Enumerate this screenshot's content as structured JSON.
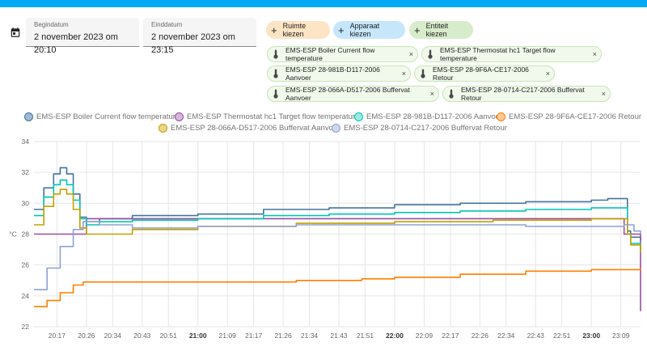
{
  "header": {
    "accent_color": "#03a9f4"
  },
  "date_range": {
    "start_label": "Begindatum",
    "start_value": "2 november 2023 om 20:10",
    "end_label": "Einddatum",
    "end_value": "2 november 2023 om 23:15"
  },
  "target_buttons": [
    {
      "label": "Ruimte kiezen",
      "color": "#fce4c4"
    },
    {
      "label": "Apparaat kiezen",
      "color": "#c6e7fb"
    },
    {
      "label": "Entiteit kiezen",
      "color": "#d7eccb"
    }
  ],
  "chips": [
    "EMS-ESP Boiler Current flow temperature",
    "EMS-ESP Thermostat hc1 Target flow temperature",
    "EMS-ESP 28-981B-D117-2006 Aanvoer",
    "EMS-ESP 28-9F6A-CE17-2006 Retour",
    "EMS-ESP 28-066A-D517-2006 Buffervat Aanvoer",
    "EMS-ESP 28-0714-C217-2006 Buffervat Retour"
  ],
  "chip_remove_glyph": "×",
  "chart_data": {
    "type": "line",
    "ylabel": "°C",
    "ylim": [
      22,
      34
    ],
    "yticks": [
      22,
      24,
      26,
      28,
      30,
      32,
      34
    ],
    "xlim": [
      "20:10",
      "23:15"
    ],
    "xticks": [
      "20:17",
      "20:26",
      "20:34",
      "20:43",
      "20:51",
      "21:00",
      "21:09",
      "21:17",
      "21:26",
      "21:34",
      "21:43",
      "21:51",
      "22:00",
      "22:09",
      "22:17",
      "22:26",
      "22:34",
      "22:43",
      "22:51",
      "23:00",
      "23:09"
    ],
    "xticks_bold": [
      "21:00",
      "22:00",
      "23:00"
    ],
    "grid": true,
    "legend_position": "top",
    "series": [
      {
        "name": "EMS-ESP Boiler Current flow temperature",
        "color": "#44739e",
        "points": [
          [
            "20:10",
            29.6
          ],
          [
            "20:13",
            31.0
          ],
          [
            "20:16",
            31.9
          ],
          [
            "20:18",
            32.3
          ],
          [
            "20:20",
            31.9
          ],
          [
            "20:22",
            30.6
          ],
          [
            "20:24",
            29.1
          ],
          [
            "20:26",
            28.8
          ],
          [
            "20:30",
            29.0
          ],
          [
            "20:40",
            29.2
          ],
          [
            "21:00",
            29.3
          ],
          [
            "21:20",
            29.6
          ],
          [
            "21:40",
            29.7
          ],
          [
            "22:00",
            29.9
          ],
          [
            "22:20",
            30.0
          ],
          [
            "22:40",
            30.1
          ],
          [
            "23:00",
            30.2
          ],
          [
            "23:05",
            30.3
          ],
          [
            "23:10",
            30.3
          ],
          [
            "23:11",
            28.2
          ],
          [
            "23:12",
            27.8
          ],
          [
            "23:15",
            27.6
          ]
        ]
      },
      {
        "name": "EMS-ESP Thermostat hc1 Target flow temperature",
        "color": "#984ea3",
        "points": [
          [
            "20:10",
            28.0
          ],
          [
            "20:26",
            28.0
          ],
          [
            "20:26",
            29.0
          ],
          [
            "23:10",
            29.0
          ],
          [
            "23:10",
            28.0
          ],
          [
            "23:15",
            28.0
          ],
          [
            "23:15",
            23.0
          ]
        ]
      },
      {
        "name": "EMS-ESP 28-981B-D117-2006 Aanvoer",
        "color": "#00c6b5",
        "points": [
          [
            "20:10",
            29.2
          ],
          [
            "20:13",
            30.4
          ],
          [
            "20:16",
            31.2
          ],
          [
            "20:18",
            31.5
          ],
          [
            "20:20",
            31.2
          ],
          [
            "20:22",
            30.2
          ],
          [
            "20:24",
            29.0
          ],
          [
            "20:26",
            28.6
          ],
          [
            "20:30",
            28.8
          ],
          [
            "20:40",
            28.9
          ],
          [
            "21:00",
            29.0
          ],
          [
            "21:20",
            29.2
          ],
          [
            "21:40",
            29.3
          ],
          [
            "22:00",
            29.4
          ],
          [
            "22:20",
            29.5
          ],
          [
            "22:40",
            29.6
          ],
          [
            "23:00",
            29.7
          ],
          [
            "23:10",
            29.7
          ],
          [
            "23:11",
            28.0
          ],
          [
            "23:12",
            27.4
          ],
          [
            "23:15",
            27.0
          ]
        ]
      },
      {
        "name": "EMS-ESP 28-9F6A-CE17-2006 Retour",
        "color": "#ff7f00",
        "points": [
          [
            "20:10",
            23.3
          ],
          [
            "20:14",
            23.7
          ],
          [
            "20:18",
            24.2
          ],
          [
            "20:22",
            24.7
          ],
          [
            "20:25",
            24.9
          ],
          [
            "20:30",
            24.9
          ],
          [
            "20:45",
            24.9
          ],
          [
            "21:00",
            24.9
          ],
          [
            "21:30",
            25.0
          ],
          [
            "21:50",
            25.1
          ],
          [
            "22:00",
            25.2
          ],
          [
            "22:20",
            25.4
          ],
          [
            "22:40",
            25.6
          ],
          [
            "23:00",
            25.7
          ],
          [
            "23:15",
            25.8
          ]
        ]
      },
      {
        "name": "EMS-ESP 28-066A-D517-2006 Buffervat Aanvoer",
        "color": "#c4a000",
        "points": [
          [
            "20:10",
            28.6
          ],
          [
            "20:13",
            29.8
          ],
          [
            "20:16",
            30.6
          ],
          [
            "20:18",
            30.9
          ],
          [
            "20:20",
            30.6
          ],
          [
            "20:22",
            29.6
          ],
          [
            "20:24",
            28.4
          ],
          [
            "20:26",
            28.0
          ],
          [
            "20:30",
            28.0
          ],
          [
            "20:40",
            28.3
          ],
          [
            "21:00",
            28.5
          ],
          [
            "21:30",
            28.7
          ],
          [
            "22:00",
            28.8
          ],
          [
            "22:30",
            28.9
          ],
          [
            "23:00",
            29.0
          ],
          [
            "23:10",
            29.0
          ],
          [
            "23:11",
            28.0
          ],
          [
            "23:12",
            27.3
          ],
          [
            "23:15",
            26.8
          ]
        ]
      },
      {
        "name": "EMS-ESP 28-0714-C217-2006 Buffervat Retour",
        "color": "#8fa2d4",
        "points": [
          [
            "20:10",
            24.4
          ],
          [
            "20:14",
            25.8
          ],
          [
            "20:18",
            27.2
          ],
          [
            "20:22",
            28.3
          ],
          [
            "20:25",
            28.8
          ],
          [
            "20:30",
            28.6
          ],
          [
            "20:40",
            28.4
          ],
          [
            "21:00",
            28.5
          ],
          [
            "21:30",
            28.6
          ],
          [
            "22:00",
            28.6
          ],
          [
            "22:40",
            28.5
          ],
          [
            "23:00",
            28.5
          ],
          [
            "23:10",
            28.6
          ],
          [
            "23:13",
            28.2
          ],
          [
            "23:15",
            28.0
          ]
        ]
      }
    ]
  }
}
